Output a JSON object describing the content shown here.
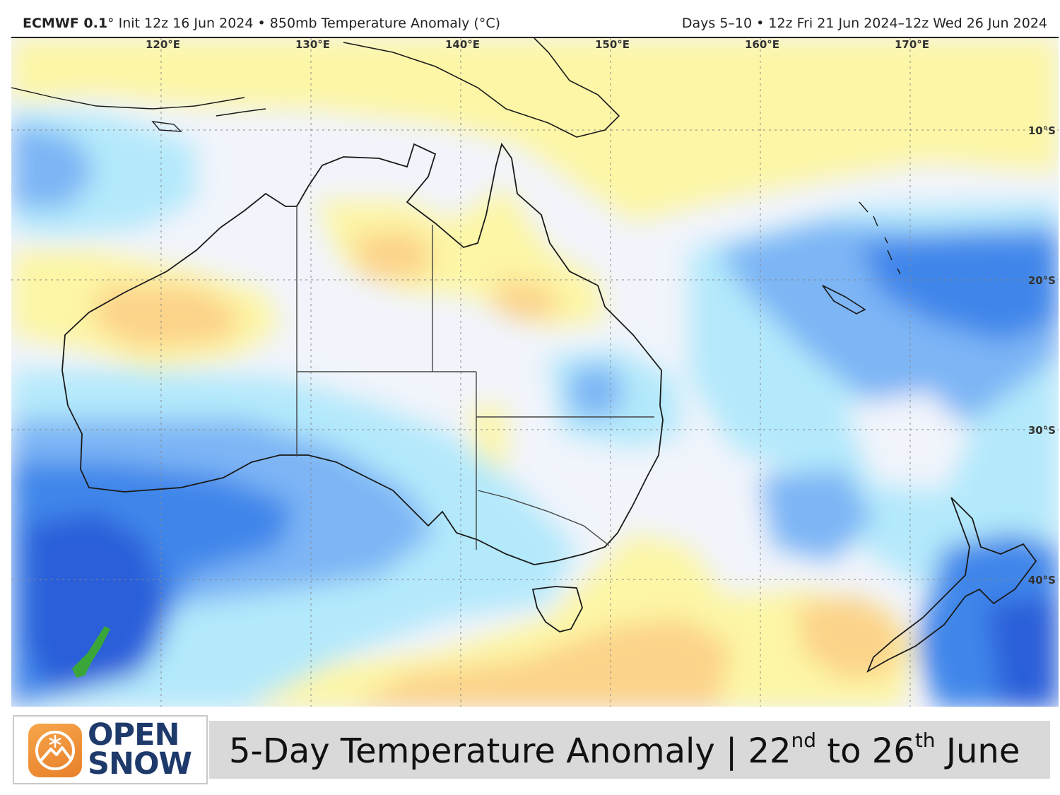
{
  "header": {
    "model": "ECMWF 0.1",
    "init_text": "° Init 12z 16 Jun 2024 • 850mb Temperature Anomaly (°C)",
    "valid_text": "Days 5–10 • 12z Fri 21 Jun 2024–12z Wed 26 Jun 2024"
  },
  "map": {
    "longitude_labels": [
      "120°E",
      "130°E",
      "140°E",
      "150°E",
      "160°E",
      "170°E"
    ],
    "latitude_labels": [
      "10°S",
      "20°S",
      "30°S",
      "40°S"
    ],
    "palette": {
      "very_cold": "#2b5fd9",
      "cold": "#3f86ea",
      "cool": "#7db5f5",
      "slightly_cool": "#b4e9fb",
      "neutral": "#f1f4fb",
      "slightly_warm": "#fdf6a6",
      "warm": "#fcd38a",
      "hot": "#f6ad6a",
      "marker": "#3aa63a",
      "coastline": "#1a1a1a"
    }
  },
  "footer": {
    "logo_line1": "OPEN",
    "logo_line2": "SNOW",
    "title_main": "5-Day Temperature Anomaly | 22",
    "title_sup1": "nd",
    "title_mid": " to 26",
    "title_sup2": "th",
    "title_end": " June"
  }
}
